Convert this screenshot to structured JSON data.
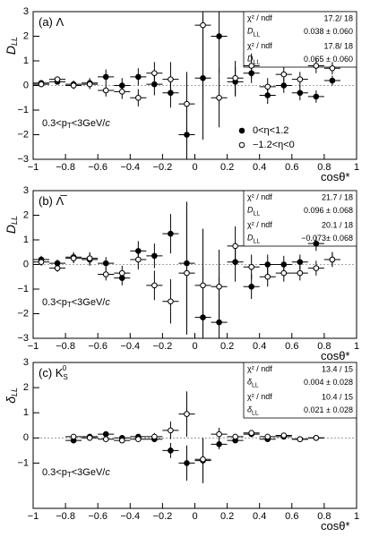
{
  "chart_data": [
    {
      "type": "scatter",
      "panel_label": "(a) Λ",
      "ylabel": "D",
      "ylabel_sub": "LL",
      "xlabel": "cosθ*",
      "annotation": [
        "0.3<p",
        "T",
        "<3GeV/",
        "c"
      ],
      "xlim": [
        -1,
        1
      ],
      "ylim": [
        -3,
        3
      ],
      "xticks": [
        {
          "value": -1,
          "label": "−1"
        },
        {
          "value": -0.8,
          "label": "−0.8"
        },
        {
          "value": -0.6,
          "label": "−0.6"
        },
        {
          "value": -0.4,
          "label": "−0.4"
        },
        {
          "value": -0.2,
          "label": "−0.2"
        },
        0,
        0.2,
        0.4,
        0.6,
        0.8,
        1
      ],
      "yticks": [
        {
          "value": -3,
          "label": "−3"
        },
        {
          "value": -2,
          "label": "−2"
        },
        {
          "value": -1,
          "label": "−1"
        },
        0,
        1,
        2,
        3
      ],
      "x_error": 0.05,
      "legend_position": "lower right",
      "stats": [
        {
          "label": "χ² / ndf",
          "value": "17.2/ 18"
        },
        {
          "label": "D",
          "sub": "LL",
          "value": "0.038 ± 0.060"
        },
        {
          "label": "χ² / ndf",
          "value": "17.8/ 18"
        },
        {
          "label": "D",
          "sub": "LL",
          "value": "0.065 ± 0.060"
        }
      ],
      "series": [
        {
          "name": "0<η<1.2",
          "marker": "filled",
          "color": "#000000",
          "x": [
            -0.95,
            -0.85,
            -0.75,
            -0.65,
            -0.55,
            -0.45,
            -0.35,
            -0.25,
            -0.15,
            -0.05,
            0.05,
            0.15,
            0.25,
            0.35,
            0.45,
            0.55,
            0.65,
            0.75,
            0.85
          ],
          "values": [
            0.1,
            0.15,
            0.05,
            0.1,
            0.35,
            0.0,
            0.35,
            0.05,
            -0.3,
            -2.0,
            0.3,
            2.0,
            0.15,
            0.5,
            -0.4,
            0.0,
            -0.3,
            -0.45,
            0.2
          ],
          "errors": [
            0.12,
            0.12,
            0.15,
            0.2,
            0.3,
            0.3,
            0.35,
            0.45,
            0.6,
            1.5,
            2.5,
            1.5,
            0.6,
            0.4,
            0.35,
            0.3,
            0.3,
            0.25,
            0.2
          ]
        },
        {
          "name": "−1.2<η<0",
          "marker": "open",
          "color": "#000000",
          "x": [
            -0.95,
            -0.85,
            -0.75,
            -0.65,
            -0.55,
            -0.45,
            -0.35,
            -0.25,
            -0.15,
            -0.05,
            0.05,
            0.15,
            0.25,
            0.35,
            0.45,
            0.55,
            0.65,
            0.75,
            0.85
          ],
          "values": [
            0.05,
            0.25,
            0.0,
            0.05,
            -0.2,
            -0.25,
            -0.5,
            0.5,
            0.25,
            -0.75,
            2.45,
            -0.5,
            0.3,
            0.8,
            -0.05,
            0.45,
            0.25,
            0.8,
            0.7
          ],
          "errors": [
            0.12,
            0.12,
            0.15,
            0.2,
            0.25,
            0.3,
            0.35,
            0.45,
            0.7,
            1.3,
            3.0,
            1.2,
            0.7,
            0.5,
            0.35,
            0.3,
            0.3,
            0.3,
            0.25
          ]
        }
      ]
    },
    {
      "type": "scatter",
      "panel_label": "(b) Λ̅",
      "ylabel": "D",
      "ylabel_sub": "LL",
      "xlabel": "cosθ*",
      "annotation": [
        "0.3<p",
        "T",
        "<3GeV/",
        "c"
      ],
      "xlim": [
        -1,
        1
      ],
      "ylim": [
        -3,
        3
      ],
      "xticks": [
        {
          "value": -1,
          "label": "−1"
        },
        {
          "value": -0.8,
          "label": "−0.8"
        },
        {
          "value": -0.6,
          "label": "−0.6"
        },
        {
          "value": -0.4,
          "label": "−0.4"
        },
        {
          "value": -0.2,
          "label": "−0.2"
        },
        0,
        0.2,
        0.4,
        0.6,
        0.8,
        1
      ],
      "yticks": [
        {
          "value": -3,
          "label": "−3"
        },
        {
          "value": -2,
          "label": "−2"
        },
        {
          "value": -1,
          "label": "−1"
        },
        0,
        1,
        2,
        3
      ],
      "x_error": 0.05,
      "stats": [
        {
          "label": "χ² / ndf",
          "value": "21.7 / 18"
        },
        {
          "label": "D",
          "sub": "LL",
          "value": "0.096 ± 0.068"
        },
        {
          "label": "χ² / ndf",
          "value": "20.1 / 18"
        },
        {
          "label": "D",
          "sub": "LL",
          "value": "−0.073± 0.068"
        }
      ],
      "series": [
        {
          "marker": "filled",
          "color": "#000000",
          "x": [
            -0.95,
            -0.85,
            -0.75,
            -0.65,
            -0.55,
            -0.45,
            -0.35,
            -0.25,
            -0.15,
            -0.05,
            0.05,
            0.15,
            0.25,
            0.35,
            0.45,
            0.55,
            0.65,
            0.75,
            0.85
          ],
          "values": [
            0.2,
            0.05,
            0.3,
            0.2,
            0.05,
            -0.55,
            0.55,
            0.35,
            1.25,
            0.05,
            -2.15,
            -2.35,
            0.1,
            -0.9,
            0.0,
            0.0,
            0.1,
            0.85,
            0.2
          ],
          "errors": [
            0.15,
            0.15,
            0.2,
            0.25,
            0.25,
            0.3,
            0.4,
            0.5,
            0.8,
            2.5,
            2.0,
            1.8,
            0.8,
            0.5,
            0.4,
            0.35,
            0.3,
            0.3,
            0.3
          ]
        },
        {
          "marker": "open",
          "color": "#000000",
          "x": [
            -0.95,
            -0.85,
            -0.75,
            -0.65,
            -0.55,
            -0.45,
            -0.35,
            -0.25,
            -0.15,
            -0.05,
            0.05,
            0.15,
            0.25,
            0.35,
            0.45,
            0.55,
            0.65,
            0.75,
            0.85
          ],
          "values": [
            0.1,
            -0.15,
            0.25,
            0.25,
            -0.4,
            -0.35,
            0.2,
            -0.85,
            -1.5,
            -0.35,
            -0.85,
            -0.9,
            0.75,
            -0.1,
            -0.5,
            -0.35,
            -0.35,
            -0.15,
            0.2
          ],
          "errors": [
            0.15,
            0.15,
            0.2,
            0.25,
            0.25,
            0.3,
            0.4,
            0.6,
            0.9,
            2.5,
            2.3,
            1.5,
            0.8,
            0.5,
            0.4,
            0.35,
            0.3,
            0.3,
            0.3
          ]
        }
      ]
    },
    {
      "type": "scatter",
      "panel_label": "(c) K",
      "panel_label_sub": "S",
      "panel_label_sup": "0",
      "ylabel": "δ",
      "ylabel_sub": "LL",
      "xlabel": "cosθ*",
      "annotation": [
        "0.3<p",
        "T",
        "<3GeV/",
        "c"
      ],
      "xlim": [
        -1,
        1
      ],
      "ylim": [
        -2.8,
        3
      ],
      "xticks": [
        {
          "value": -1,
          "label": "−1"
        },
        {
          "value": -0.8,
          "label": "−0.8"
        },
        {
          "value": -0.6,
          "label": "−0.6"
        },
        {
          "value": -0.4,
          "label": "−0.4"
        },
        {
          "value": -0.2,
          "label": "−0.2"
        },
        0,
        0.2,
        0.4,
        0.6,
        0.8,
        1
      ],
      "yticks": [
        {
          "value": -1,
          "label": "−1"
        },
        0,
        1,
        2,
        3
      ],
      "x_error": 0.05,
      "stats": [
        {
          "label": "χ² / ndf",
          "value": "13.4 / 15"
        },
        {
          "label": "δ",
          "sub": "LL",
          "value": "0.004 ± 0.028"
        },
        {
          "label": "χ² / ndf",
          "value": "10.4 / 15"
        },
        {
          "label": "δ",
          "sub": "LL",
          "value": "0.021 ± 0.028"
        }
      ],
      "series": [
        {
          "marker": "filled",
          "color": "#000000",
          "x": [
            -0.75,
            -0.65,
            -0.55,
            -0.45,
            -0.35,
            -0.25,
            -0.15,
            -0.05,
            0.05,
            0.15,
            0.25,
            0.35,
            0.45,
            0.55,
            0.65,
            0.75
          ],
          "values": [
            -0.1,
            0.05,
            0.15,
            0.0,
            0.05,
            -0.05,
            -0.5,
            -1.0,
            -0.9,
            -0.25,
            -0.1,
            0.15,
            -0.05,
            0.05,
            -0.05,
            0.0
          ],
          "errors": [
            0.08,
            0.08,
            0.08,
            0.08,
            0.1,
            0.12,
            0.3,
            0.7,
            0.9,
            0.2,
            0.1,
            0.08,
            0.08,
            0.08,
            0.08,
            0.08
          ]
        },
        {
          "marker": "open",
          "color": "#000000",
          "x": [
            -0.75,
            -0.65,
            -0.55,
            -0.45,
            -0.35,
            -0.25,
            -0.15,
            -0.05,
            0.05,
            0.15,
            0.25,
            0.35,
            0.45,
            0.55,
            0.65,
            0.75
          ],
          "values": [
            0.05,
            0.0,
            -0.05,
            -0.1,
            -0.05,
            0.05,
            0.3,
            0.95,
            -0.85,
            0.15,
            0.05,
            0.2,
            0.05,
            0.1,
            -0.05,
            0.0
          ],
          "errors": [
            0.08,
            0.08,
            0.08,
            0.08,
            0.1,
            0.15,
            0.35,
            0.9,
            0.8,
            0.25,
            0.1,
            0.08,
            0.08,
            0.08,
            0.08,
            0.08
          ]
        }
      ]
    }
  ]
}
